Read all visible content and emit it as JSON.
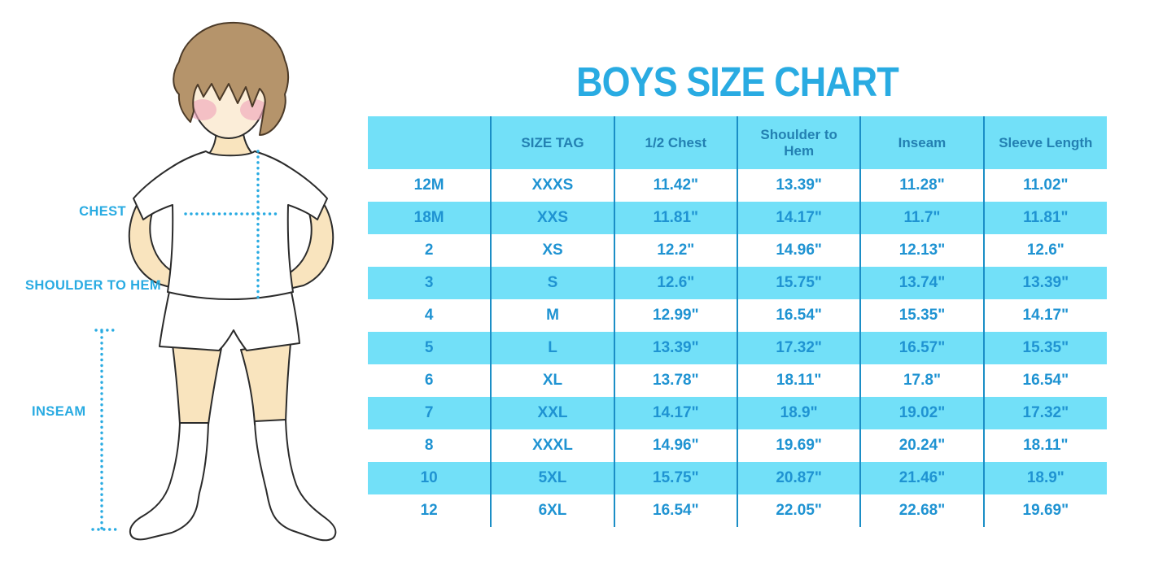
{
  "page": {
    "title": "BOYS SIZE CHART"
  },
  "colors": {
    "accent_cyan": "#29ABE2",
    "stripe_blue": "#72E0F8",
    "grid_line_blue": "#1B8EC6",
    "header_text_blue": "#2380B2",
    "cell_text_blue": "#1F93D2",
    "hair_brown": "#B5946B",
    "skin_tone": "#F9E4BE",
    "blush_pink": "#F0A8BB"
  },
  "diagram": {
    "labels": {
      "chest": "CHEST",
      "shoulder_to_hem": "SHOULDER TO HEM",
      "inseam": "INSEAM"
    }
  },
  "chart_data": {
    "type": "table",
    "title": "BOYS SIZE CHART",
    "columns": [
      "",
      "SIZE TAG",
      "1/2 Chest",
      "Shoulder to Hem",
      "Inseam",
      "Sleeve Length"
    ],
    "rows": [
      [
        "12M",
        "XXXS",
        "11.42\"",
        "13.39\"",
        "11.28\"",
        "11.02\""
      ],
      [
        "18M",
        "XXS",
        "11.81\"",
        "14.17\"",
        "11.7\"",
        "11.81\""
      ],
      [
        "2",
        "XS",
        "12.2\"",
        "14.96\"",
        "12.13\"",
        "12.6\""
      ],
      [
        "3",
        "S",
        "12.6\"",
        "15.75\"",
        "13.74\"",
        "13.39\""
      ],
      [
        "4",
        "M",
        "12.99\"",
        "16.54\"",
        "15.35\"",
        "14.17\""
      ],
      [
        "5",
        "L",
        "13.39\"",
        "17.32\"",
        "16.57\"",
        "15.35\""
      ],
      [
        "6",
        "XL",
        "13.78\"",
        "18.11\"",
        "17.8\"",
        "16.54\""
      ],
      [
        "7",
        "XXL",
        "14.17\"",
        "18.9\"",
        "19.02\"",
        "17.32\""
      ],
      [
        "8",
        "XXXL",
        "14.96\"",
        "19.69\"",
        "20.24\"",
        "18.11\""
      ],
      [
        "10",
        "5XL",
        "15.75\"",
        "20.87\"",
        "21.46\"",
        "18.9\""
      ],
      [
        "12",
        "6XL",
        "16.54\"",
        "22.05\"",
        "22.68\"",
        "19.69\""
      ]
    ],
    "layout": {
      "striped_rows": "even rows light blue",
      "header_background": "light blue",
      "vertical_grid_only": true
    }
  }
}
